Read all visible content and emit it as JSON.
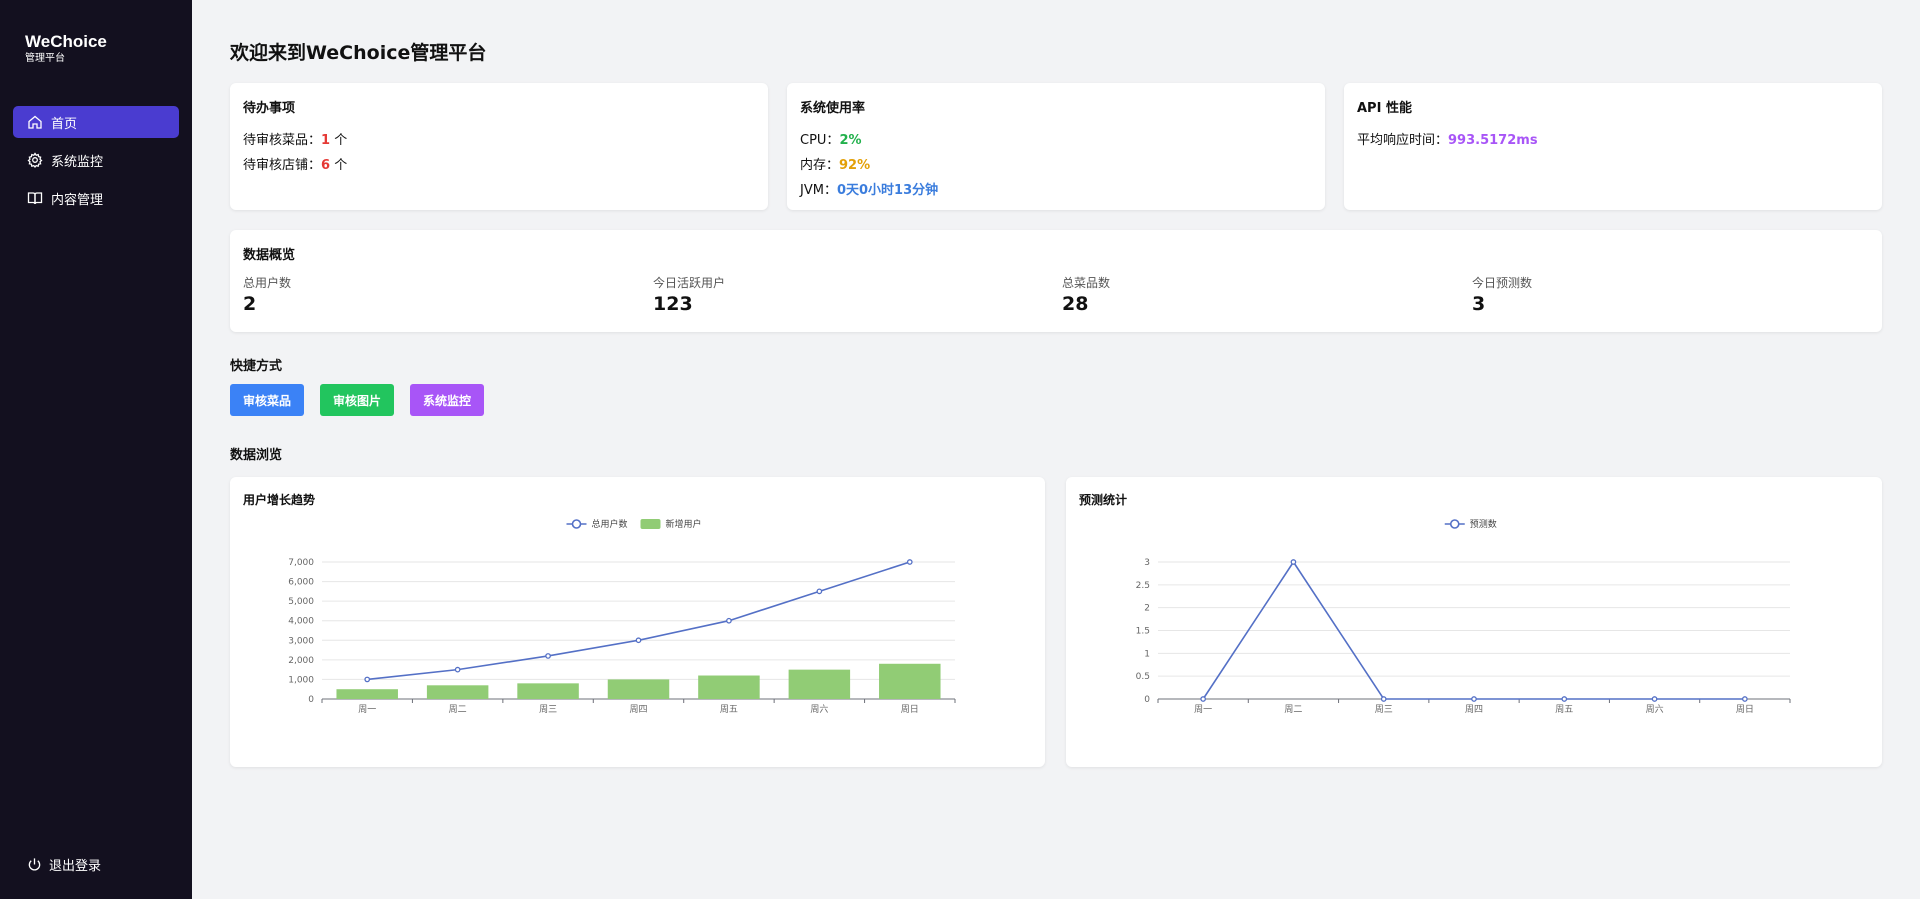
{
  "sidebar": {
    "brand": "WeChoice",
    "brand_sub": "管理平台",
    "items": [
      {
        "label": "首页",
        "icon": "home-icon"
      },
      {
        "label": "系统监控",
        "icon": "gear-icon"
      },
      {
        "label": "内容管理",
        "icon": "book-icon"
      }
    ],
    "logout": "退出登录"
  },
  "page_title": "欢迎来到WeChoice管理平台",
  "todo": {
    "title": "待办事项",
    "dish_label": "待审核菜品：",
    "dish_count": "1",
    "shop_label": "待审核店铺：",
    "shop_count": "6",
    "unit": " 个"
  },
  "usage": {
    "title": "系统使用率",
    "cpu_label": "CPU：",
    "cpu_value": "2%",
    "mem_label": "内存：",
    "mem_value": "92%",
    "jvm_label": "JVM：",
    "jvm_value": "0天0小时13分钟"
  },
  "api": {
    "title": "API 性能",
    "label": "平均响应时间：",
    "value": "993.5172ms"
  },
  "overview": {
    "title": "数据概览",
    "stats": [
      {
        "label": "总用户数",
        "value": "2"
      },
      {
        "label": "今日活跃用户",
        "value": "123"
      },
      {
        "label": "总菜品数",
        "value": "28"
      },
      {
        "label": "今日预测数",
        "value": "3"
      }
    ]
  },
  "shortcuts": {
    "title": "快捷方式",
    "buttons": [
      "审核菜品",
      "审核图片",
      "系统监控"
    ]
  },
  "browse_title": "数据浏览",
  "colors": {
    "accent": "#4a3cd0",
    "btn1": "#3b82f6",
    "btn2": "#22c55e",
    "btn3": "#a855f7",
    "line": "#5470c6",
    "bar": "#91cc75"
  },
  "chart_data": [
    {
      "type": "bar",
      "title": "用户增长趋势",
      "categories": [
        "周一",
        "周二",
        "周三",
        "周四",
        "周五",
        "周六",
        "周日"
      ],
      "series": [
        {
          "name": "总用户数",
          "type": "line",
          "values": [
            1000,
            1500,
            2200,
            3000,
            4000,
            5500,
            7000
          ]
        },
        {
          "name": "新增用户",
          "type": "bar",
          "values": [
            500,
            700,
            800,
            1000,
            1200,
            1500,
            1800
          ]
        }
      ],
      "ylim": [
        0,
        7000
      ],
      "yticks": [
        "0",
        "1,000",
        "2,000",
        "3,000",
        "4,000",
        "5,000",
        "6,000",
        "7,000"
      ],
      "grid": true,
      "legend": "top-center"
    },
    {
      "type": "line",
      "title": "预测统计",
      "categories": [
        "周一",
        "周二",
        "周三",
        "周四",
        "周五",
        "周六",
        "周日"
      ],
      "series": [
        {
          "name": "预测数",
          "values": [
            0,
            3,
            0,
            0,
            0,
            0,
            0
          ]
        }
      ],
      "ylim": [
        0,
        3
      ],
      "yticks": [
        "0",
        "0.5",
        "1",
        "1.5",
        "2",
        "2.5",
        "3"
      ],
      "grid": true,
      "legend": "top-center"
    }
  ]
}
